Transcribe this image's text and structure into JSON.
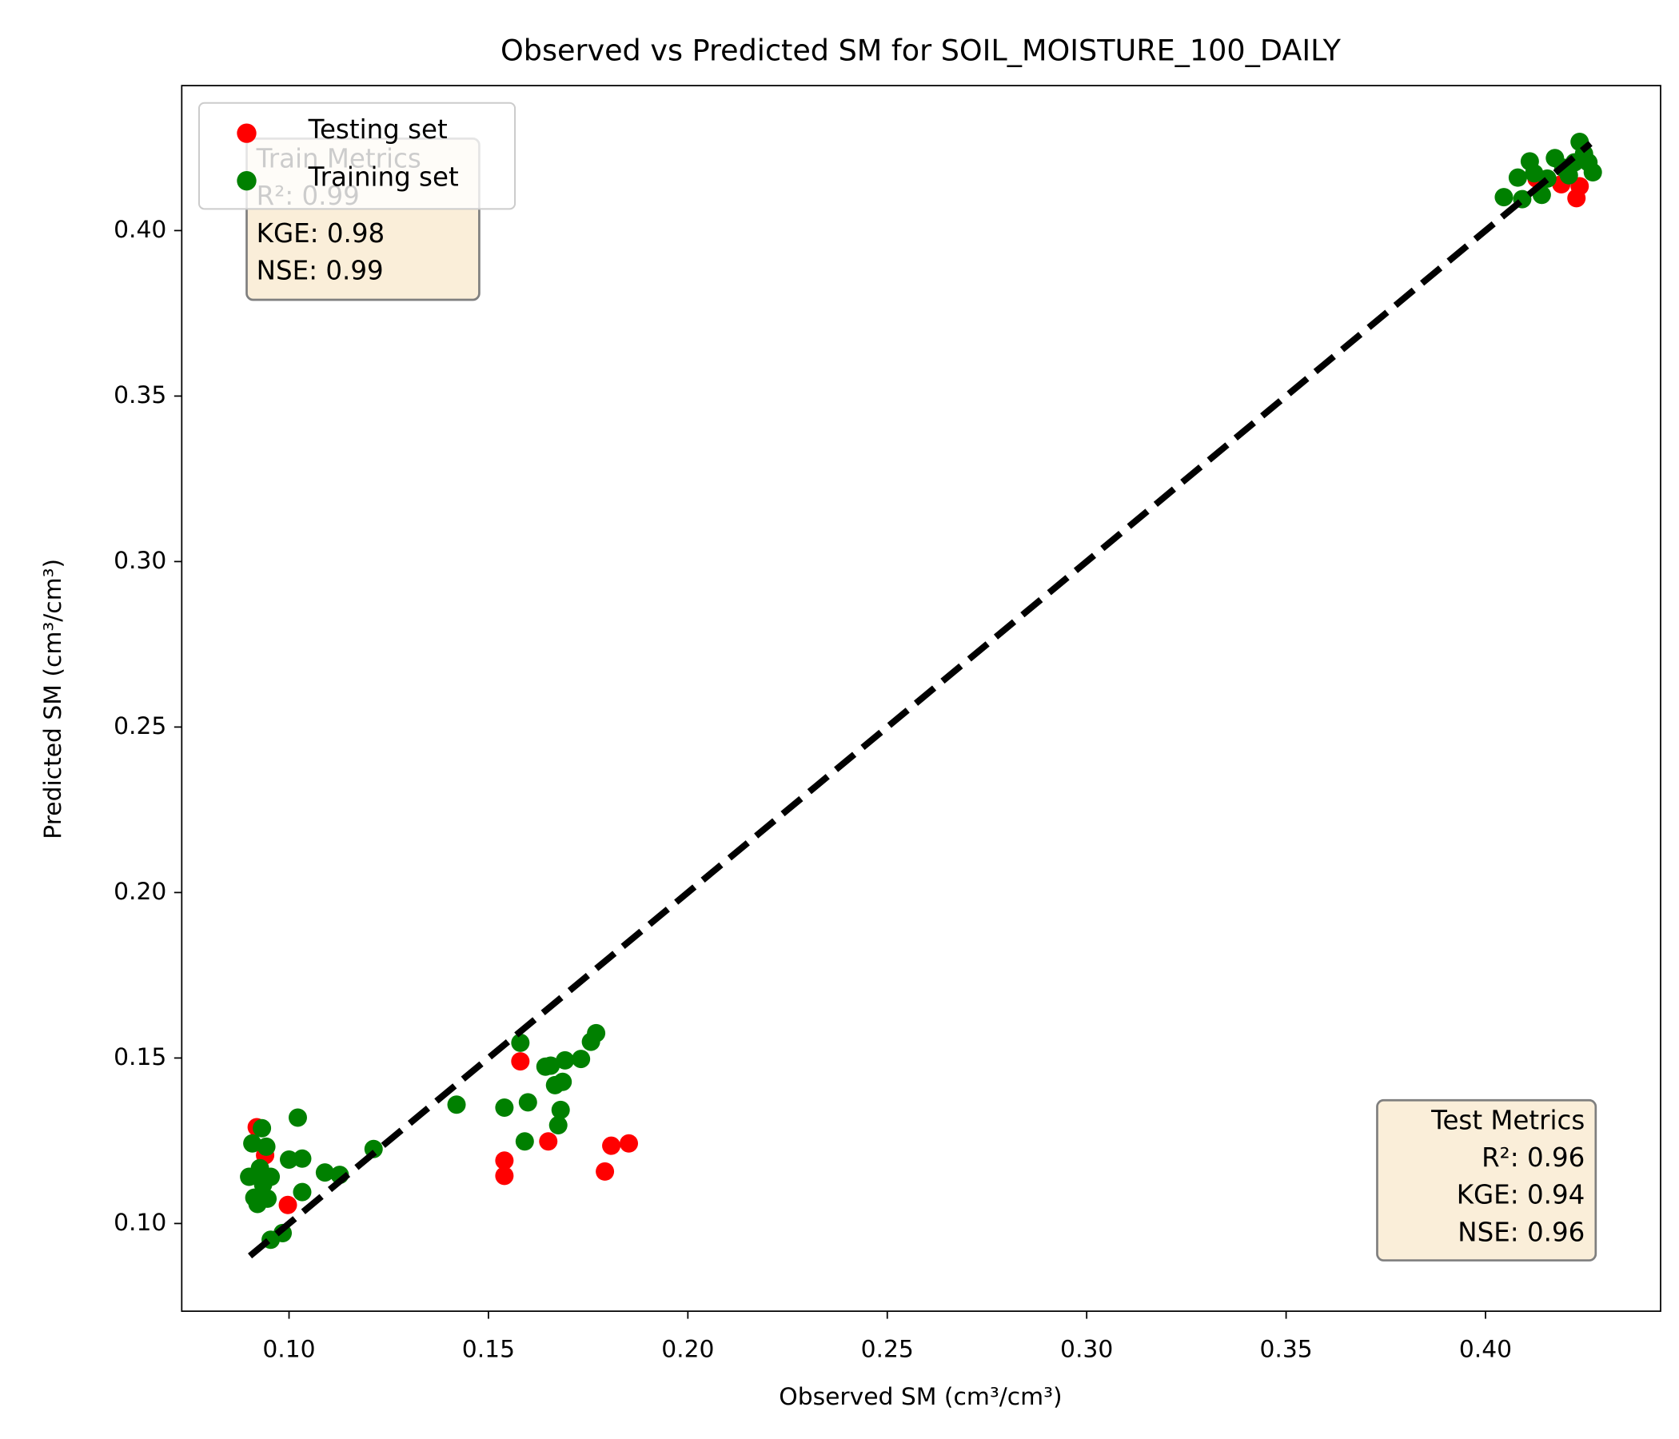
{
  "chart_data": {
    "type": "scatter",
    "title": "Observed vs Predicted SM for SOIL_MOISTURE_100_DAILY",
    "x_label": "Observed SM (cm³/cm³)",
    "y_label": "Predicted SM (cm³/cm³)",
    "xlim": [
      0.0731,
      0.4439
    ],
    "ylim": [
      0.0735,
      0.4438
    ],
    "xticks": [
      {
        "value": 0.1,
        "label": "0.10"
      },
      {
        "value": 0.15,
        "label": "0.15"
      },
      {
        "value": 0.2,
        "label": "0.20"
      },
      {
        "value": 0.25,
        "label": "0.25"
      },
      {
        "value": 0.3,
        "label": "0.30"
      },
      {
        "value": 0.35,
        "label": "0.35"
      },
      {
        "value": 0.4,
        "label": "0.40"
      }
    ],
    "yticks": [
      {
        "value": 0.1,
        "label": "0.10"
      },
      {
        "value": 0.15,
        "label": "0.15"
      },
      {
        "value": 0.2,
        "label": "0.20"
      },
      {
        "value": 0.25,
        "label": "0.25"
      },
      {
        "value": 0.3,
        "label": "0.30"
      },
      {
        "value": 0.35,
        "label": "0.35"
      },
      {
        "value": 0.4,
        "label": "0.40"
      }
    ],
    "grid": false,
    "legend": "upper left",
    "reference_line": [
      0.0902,
      0.4263
    ],
    "series": [
      {
        "name": "Testing set",
        "color": "#ff0000",
        "x": [
          0.0919,
          0.094,
          0.0997,
          0.154,
          0.154,
          0.158,
          0.165,
          0.1792,
          0.1808,
          0.1852,
          0.4228,
          0.419,
          0.4128,
          0.4236
        ],
        "values": [
          0.1291,
          0.1206,
          0.1056,
          0.119,
          0.1144,
          0.149,
          0.1248,
          0.1157,
          0.1235,
          0.1242,
          0.4098,
          0.414,
          0.4157,
          0.4134
        ]
      },
      {
        "name": "Training set",
        "color": "#008000",
        "x": [
          0.09,
          0.0908,
          0.0913,
          0.0921,
          0.0927,
          0.0932,
          0.0935,
          0.0943,
          0.0946,
          0.0954,
          0.0954,
          0.0984,
          0.1,
          0.1022,
          0.1033,
          0.1033,
          0.109,
          0.1127,
          0.1212,
          0.142,
          0.154,
          0.158,
          0.1591,
          0.1599,
          0.1643,
          0.1656,
          0.1667,
          0.1675,
          0.1681,
          0.1686,
          0.1692,
          0.1732,
          0.1757,
          0.177,
          0.4046,
          0.4081,
          0.4092,
          0.4111,
          0.4122,
          0.4141,
          0.4155,
          0.4174,
          0.4195,
          0.4209,
          0.4236,
          0.4247,
          0.4258,
          0.4269,
          0.4223
        ],
        "values": [
          0.1141,
          0.1242,
          0.1078,
          0.1059,
          0.1167,
          0.1288,
          0.1118,
          0.1232,
          0.1075,
          0.1141,
          0.0951,
          0.0971,
          0.1193,
          0.132,
          0.1196,
          0.1095,
          0.1154,
          0.1147,
          0.1225,
          0.1359,
          0.135,
          0.1546,
          0.1248,
          0.1366,
          0.1474,
          0.1477,
          0.1418,
          0.1297,
          0.1343,
          0.1428,
          0.1493,
          0.1497,
          0.1549,
          0.1575,
          0.4101,
          0.416,
          0.4095,
          0.4209,
          0.4173,
          0.4108,
          0.4157,
          0.4219,
          0.419,
          0.4167,
          0.4268,
          0.4232,
          0.4206,
          0.4176,
          0.4206
        ]
      }
    ],
    "train_metrics": [
      "Train Metrics",
      "R²: 0.99",
      "KGE: 0.98",
      "NSE: 0.99"
    ],
    "test_metrics": [
      "Test Metrics",
      "R²: 0.96",
      "KGE: 0.94",
      "NSE: 0.96"
    ]
  }
}
